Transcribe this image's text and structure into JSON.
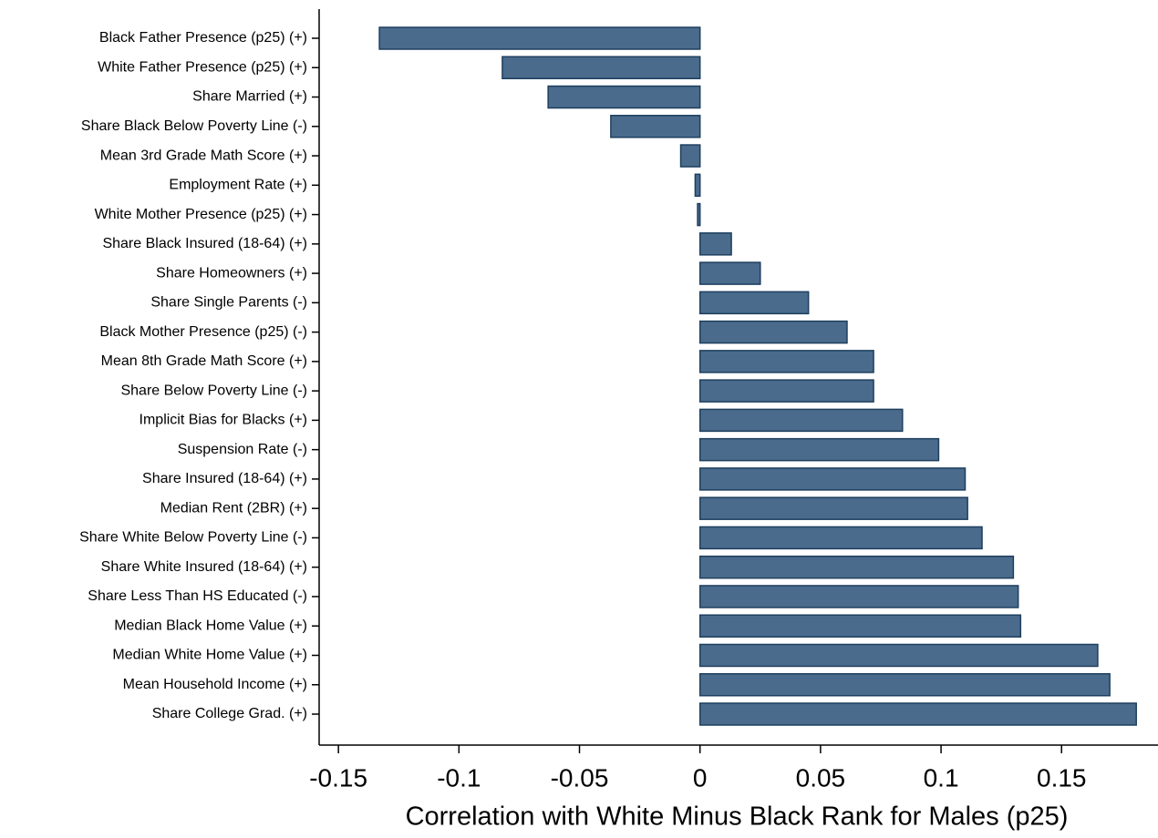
{
  "chart_data": {
    "type": "bar",
    "orientation": "horizontal",
    "xlabel": "Correlation with White Minus Black Rank for Males (p25)",
    "categories": [
      "Black Father Presence (p25) (+)",
      "White Father Presence (p25) (+)",
      "Share Married (+)",
      "Share Black Below Poverty Line (-)",
      "Mean 3rd Grade Math Score (+)",
      "Employment Rate (+)",
      "White Mother Presence (p25) (+)",
      "Share Black Insured (18-64) (+)",
      "Share Homeowners (+)",
      "Share Single Parents (-)",
      "Black Mother Presence (p25) (-)",
      "Mean 8th Grade Math Score (+)",
      "Share Below Poverty Line (-)",
      "Implicit Bias for Blacks (+)",
      "Suspension Rate (-)",
      "Share Insured (18-64) (+)",
      "Median Rent (2BR) (+)",
      "Share White Below Poverty Line (-)",
      "Share White Insured (18-64) (+)",
      "Share Less Than HS Educated (-)",
      "Median Black Home Value (+)",
      "Median White Home Value (+)",
      "Mean Household Income (+)",
      "Share College Grad. (+)"
    ],
    "values": [
      -0.133,
      -0.082,
      -0.063,
      -0.037,
      -0.008,
      -0.002,
      -0.001,
      0.013,
      0.025,
      0.045,
      0.061,
      0.072,
      0.072,
      0.084,
      0.099,
      0.11,
      0.111,
      0.117,
      0.13,
      0.132,
      0.133,
      0.165,
      0.17,
      0.181
    ],
    "color": "#4a6b8c",
    "xlim": [
      -0.158,
      0.19
    ],
    "xticks": [
      -0.15,
      -0.1,
      -0.05,
      0,
      0.05,
      0.1,
      0.15
    ]
  }
}
